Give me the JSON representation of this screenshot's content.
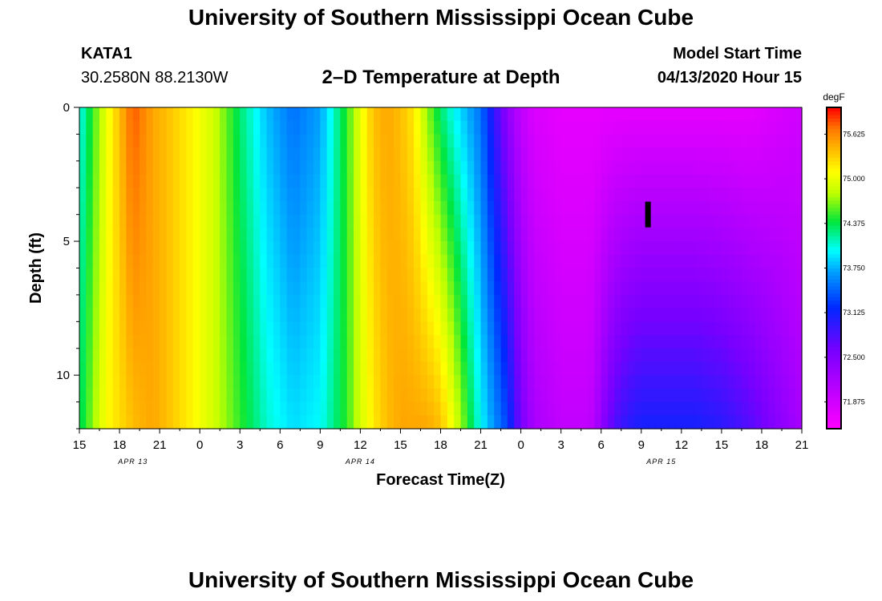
{
  "header": {
    "top_title": "University of Southern Mississippi Ocean Cube",
    "station_name": "KATA1",
    "station_coords": "30.2580N 88.2130W",
    "plot_title": "2–D Temperature at Depth",
    "model_start_label": "Model Start Time",
    "model_start_value": "04/13/2020 Hour 15"
  },
  "footer": {
    "bottom_title": "University of Southern Mississippi Ocean Cube"
  },
  "chart_data": {
    "type": "heatmap",
    "title": "2–D Temperature at Depth",
    "xlabel": "Forecast Time(Z)",
    "ylabel": "Depth (ft)",
    "x_hours_range": [
      0,
      54
    ],
    "x_tick_labels": [
      "15",
      "18",
      "21",
      "0",
      "3",
      "6",
      "9",
      "12",
      "15",
      "18",
      "21",
      "0",
      "3",
      "6",
      "9",
      "12",
      "15",
      "18",
      "21"
    ],
    "date_labels": [
      {
        "text": "APR 13",
        "hour": 4
      },
      {
        "text": "APR 14",
        "hour": 21
      },
      {
        "text": "APR 15",
        "hour": 43.5
      }
    ],
    "ylim": [
      0,
      12
    ],
    "y_tick_labels": [
      "0",
      "5",
      "10"
    ],
    "y_tick_values": [
      0,
      5,
      10
    ],
    "colorbar": {
      "unit": "degF",
      "min": 71.5,
      "max": 76.0,
      "tick_labels": [
        "75.625",
        "75.000",
        "74.375",
        "73.750",
        "73.125",
        "72.500",
        "71.875"
      ],
      "tick_values": [
        75.625,
        75.0,
        74.375,
        73.75,
        73.125,
        72.5,
        71.875
      ]
    },
    "time_columns_hours": [
      0,
      2,
      4,
      5.5,
      6.5,
      8,
      10,
      12,
      14,
      16,
      18,
      20,
      21,
      22,
      23,
      24,
      25,
      26,
      27,
      28,
      30,
      32,
      33,
      34,
      36,
      38,
      38.5,
      39,
      39.5,
      40,
      40.5,
      41,
      42,
      46,
      48,
      50,
      52,
      54
    ],
    "depth_rows_ft": [
      0,
      12
    ],
    "temperature_surface_degF": [
      74.0,
      75.0,
      75.8,
      75.5,
      75.4,
      75.2,
      74.9,
      74.3,
      73.8,
      73.5,
      73.7,
      74.5,
      75.0,
      75.4,
      75.5,
      75.4,
      75.2,
      74.7,
      74.3,
      74.0,
      73.5,
      72.4,
      72.0,
      71.8,
      71.7,
      71.7,
      71.7,
      71.7,
      71.7,
      71.7,
      71.7,
      71.7,
      71.7,
      71.7,
      71.7,
      71.7,
      71.8,
      71.9
    ],
    "temperature_bottom_degF": [
      74.3,
      75.1,
      75.4,
      75.5,
      75.4,
      75.2,
      74.9,
      74.5,
      74.1,
      73.9,
      74.0,
      74.5,
      74.9,
      75.2,
      75.4,
      75.5,
      75.5,
      75.5,
      75.4,
      75.0,
      74.0,
      73.3,
      72.6,
      72.2,
      72.0,
      72.0,
      72.1,
      72.4,
      72.6,
      72.8,
      72.9,
      73.0,
      73.1,
      73.1,
      73.0,
      72.8,
      72.5,
      72.2
    ],
    "marker": {
      "hour": 42.5,
      "depth_ft": 4.0
    }
  }
}
